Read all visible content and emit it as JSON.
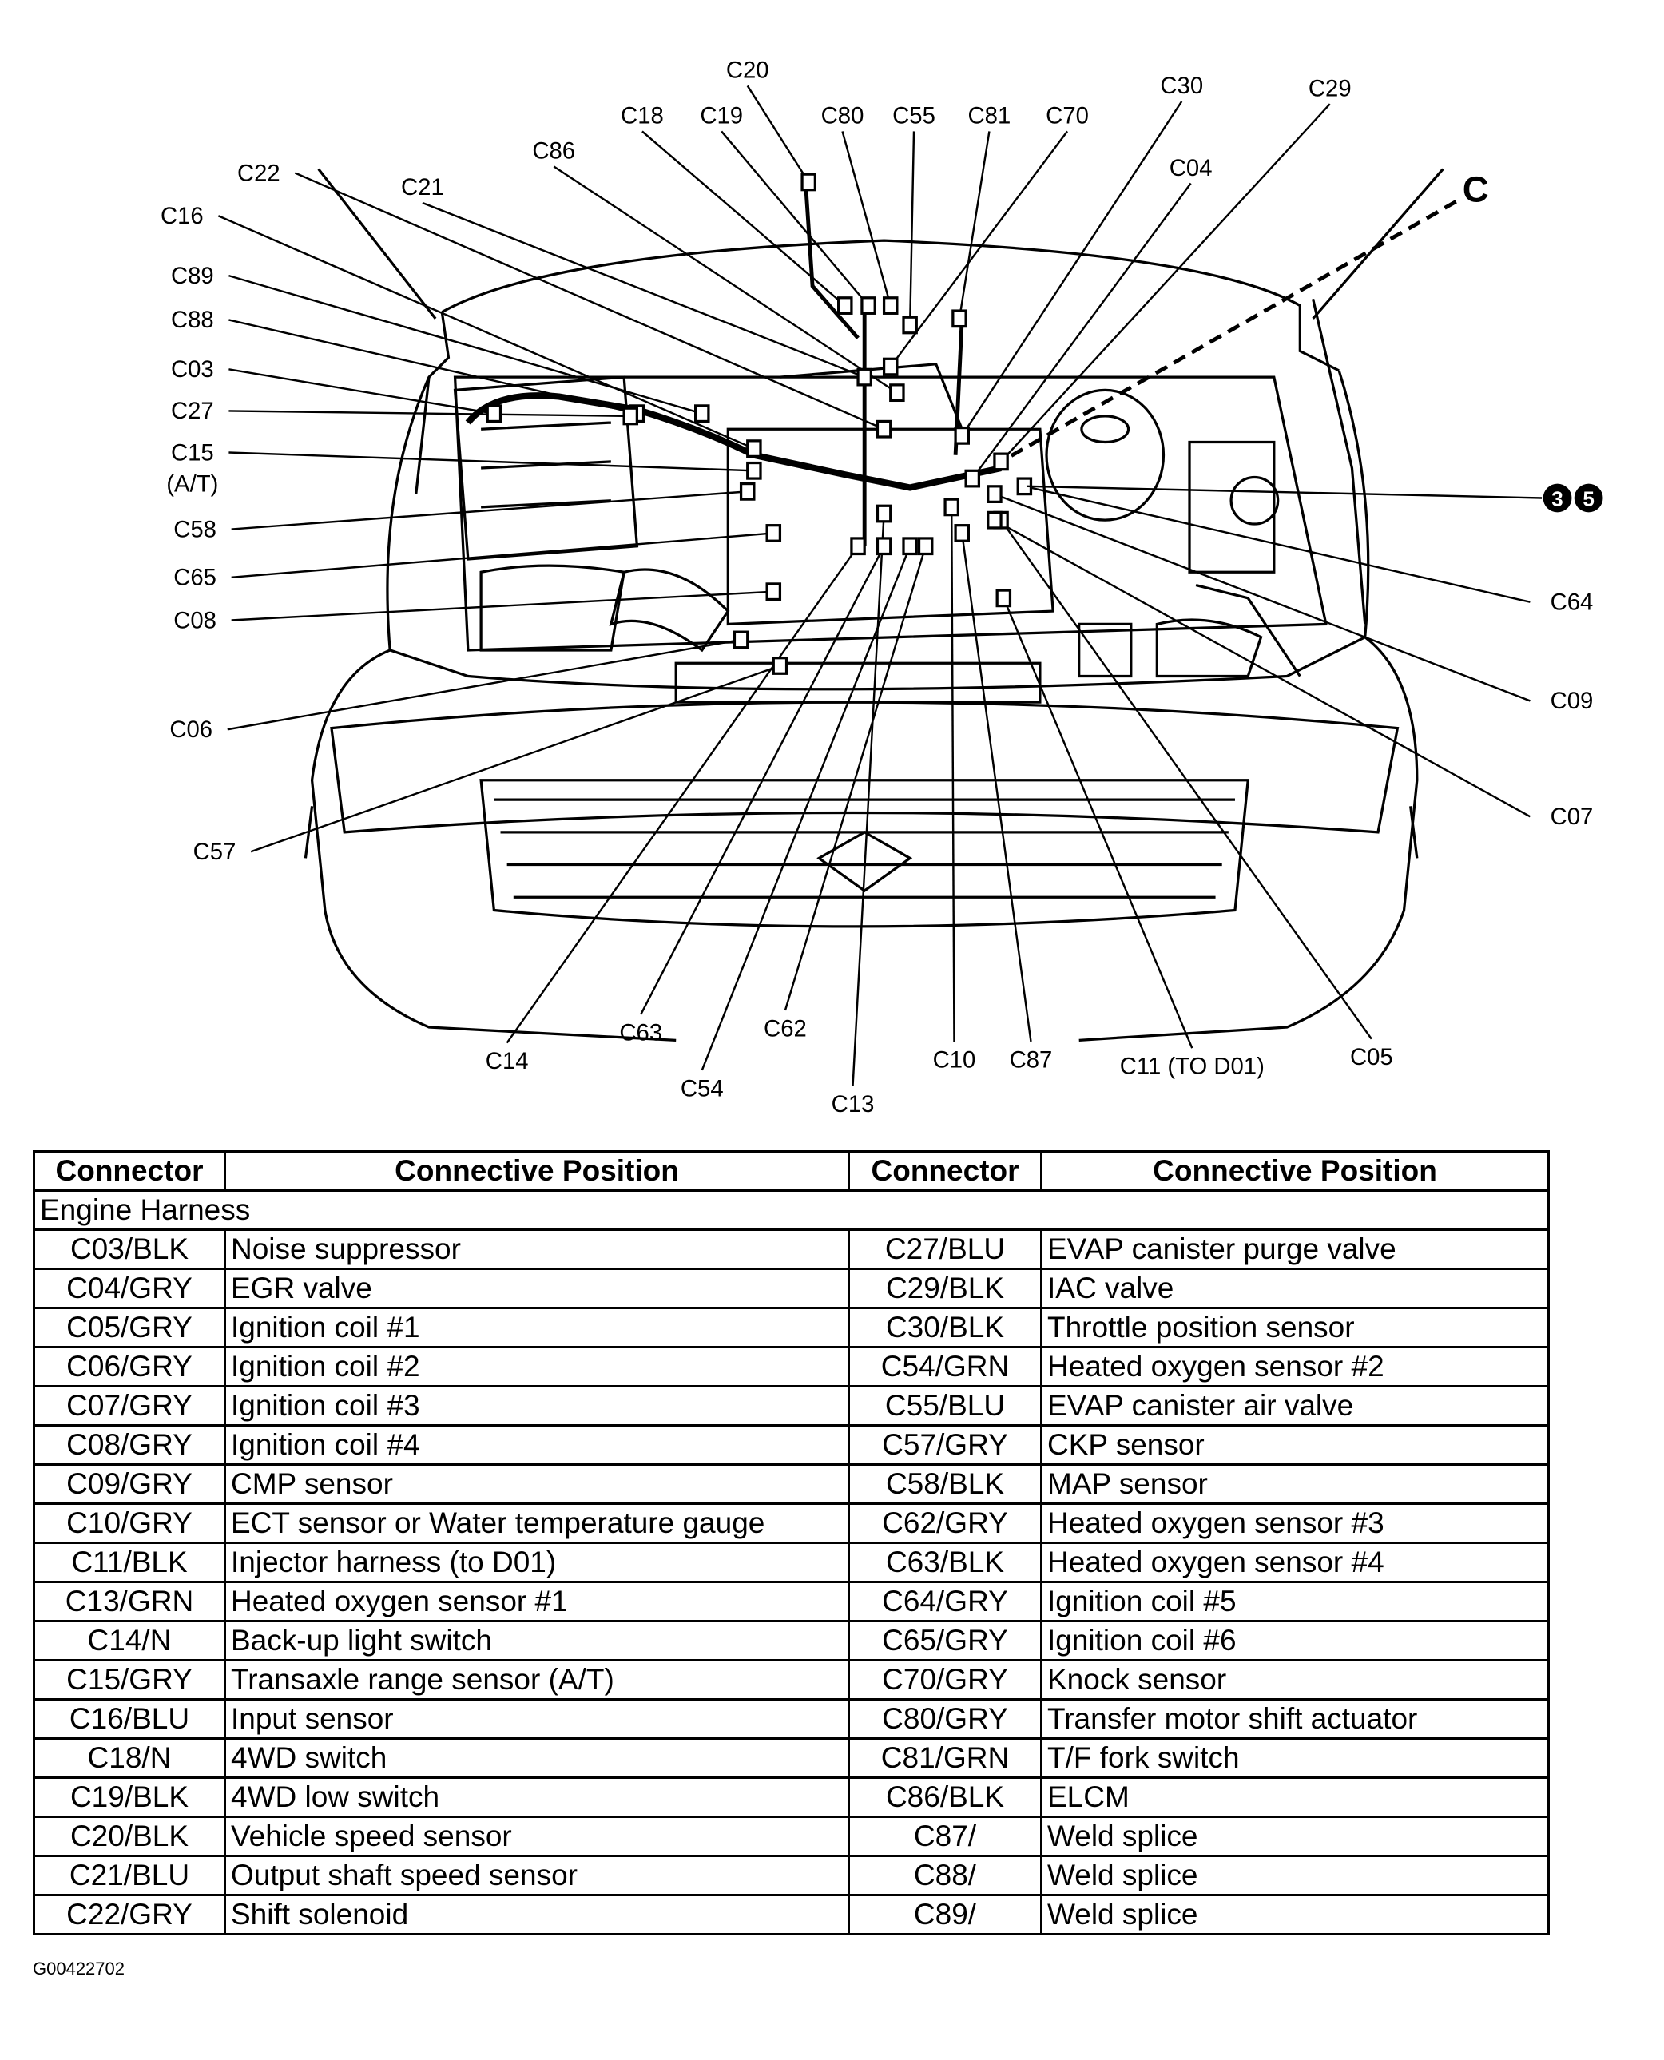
{
  "diagram": {
    "labels": [
      "C20",
      "C18",
      "C19",
      "C80",
      "C55",
      "C81",
      "C70",
      "C30",
      "C29",
      "C04",
      "C86",
      "C22",
      "C21",
      "C16",
      "C89",
      "C88",
      "C03",
      "C27",
      "C15",
      "(A/T)",
      "C58",
      "C65",
      "C08",
      "C06",
      "C57",
      "C14",
      "C63",
      "C54",
      "C62",
      "C13",
      "C10",
      "C87",
      "C11 (TO D01)",
      "C05",
      "C07",
      "C09",
      "C64"
    ],
    "view_label": "C",
    "callout_numbers": [
      "3",
      "5"
    ]
  },
  "table": {
    "headers": [
      "Connector",
      "Connective Position",
      "Connector",
      "Connective Position"
    ],
    "section": "Engine Harness",
    "rows": [
      [
        "C03/BLK",
        "Noise suppressor",
        "C27/BLU",
        "EVAP canister purge valve"
      ],
      [
        "C04/GRY",
        "EGR valve",
        "C29/BLK",
        "IAC valve"
      ],
      [
        "C05/GRY",
        "Ignition coil #1",
        "C30/BLK",
        "Throttle position sensor"
      ],
      [
        "C06/GRY",
        "Ignition coil #2",
        "C54/GRN",
        "Heated oxygen sensor #2"
      ],
      [
        "C07/GRY",
        "Ignition coil #3",
        "C55/BLU",
        "EVAP canister air valve"
      ],
      [
        "C08/GRY",
        "Ignition coil #4",
        "C57/GRY",
        "CKP sensor"
      ],
      [
        "C09/GRY",
        "CMP sensor",
        "C58/BLK",
        "MAP sensor"
      ],
      [
        "C10/GRY",
        "ECT sensor or Water temperature gauge",
        "C62/GRY",
        "Heated oxygen sensor #3"
      ],
      [
        "C11/BLK",
        "Injector harness (to D01)",
        "C63/BLK",
        "Heated oxygen sensor #4"
      ],
      [
        "C13/GRN",
        "Heated oxygen sensor #1",
        "C64/GRY",
        "Ignition coil #5"
      ],
      [
        "C14/N",
        "Back-up light switch",
        "C65/GRY",
        "Ignition coil #6"
      ],
      [
        "C15/GRY",
        "Transaxle range sensor (A/T)",
        "C70/GRY",
        "Knock sensor"
      ],
      [
        "C16/BLU",
        "Input sensor",
        "C80/GRY",
        "Transfer motor shift actuator"
      ],
      [
        "C18/N",
        "4WD switch",
        "C81/GRN",
        "T/F fork switch"
      ],
      [
        "C19/BLK",
        "4WD low switch",
        "C86/BLK",
        "ELCM"
      ],
      [
        "C20/BLK",
        "Vehicle speed sensor",
        "C87/",
        "Weld splice"
      ],
      [
        "C21/BLU",
        "Output shaft speed sensor",
        "C88/",
        "Weld splice"
      ],
      [
        "C22/GRY",
        "Shift solenoid",
        "C89/",
        "Weld splice"
      ]
    ]
  },
  "footer": {
    "figure_id": "G00422702"
  }
}
